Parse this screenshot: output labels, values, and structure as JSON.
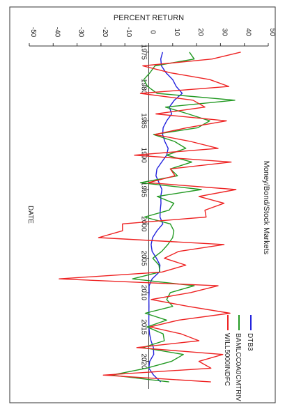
{
  "chart_data": {
    "type": "line",
    "orientation": "rotated-90-clockwise",
    "title": "Money/Bond/Stock Markets",
    "xlabel": "DATE",
    "ylabel": "PERCENT RETURN",
    "ylim": [
      -50,
      50
    ],
    "xlim": [
      1973.5,
      2024
    ],
    "y_ticks": [
      -50,
      -40,
      -30,
      -20,
      -10,
      0,
      10,
      20,
      30,
      40,
      50
    ],
    "y_tick_labels": [
      "-50",
      "-40",
      "-30",
      "-20",
      "-10",
      "0",
      "10",
      "20",
      "30",
      "40",
      "50"
    ],
    "x_ticks": [
      1975,
      1980,
      1985,
      1990,
      1995,
      2000,
      2005,
      2010,
      2015,
      2020
    ],
    "x_tick_labels": [
      "1975",
      "1980",
      "1985",
      "1990",
      "1995",
      "2000",
      "2005",
      "2010",
      "2015",
      "2020"
    ],
    "legend_position": "bottom-right",
    "series": [
      {
        "name": "DTB3",
        "color": "#2222dd",
        "x": [
          1975,
          1976,
          1977,
          1978,
          1979,
          1980,
          1981,
          1982,
          1983,
          1984,
          1985,
          1986,
          1987,
          1988,
          1989,
          1990,
          1991,
          1992,
          1993,
          1994,
          1995,
          1996,
          1997,
          1998,
          1999,
          2000,
          2001,
          2002,
          2003,
          2004,
          2005,
          2006,
          2007,
          2008,
          2009,
          2010,
          2011,
          2012,
          2013,
          2014,
          2015,
          2016,
          2017,
          2018,
          2019,
          2020,
          2021,
          2022,
          2023
        ],
        "y": [
          5.8,
          5.0,
          5.3,
          7.2,
          10.0,
          11.5,
          14.0,
          10.7,
          8.6,
          9.6,
          7.5,
          6.0,
          5.8,
          6.7,
          8.1,
          7.5,
          5.4,
          3.4,
          3.0,
          4.3,
          5.5,
          5.0,
          5.1,
          4.8,
          4.7,
          5.9,
          3.4,
          1.6,
          1.0,
          1.4,
          3.2,
          4.7,
          4.4,
          1.4,
          0.15,
          0.14,
          0.05,
          0.09,
          0.06,
          0.03,
          0.05,
          0.32,
          0.93,
          1.94,
          2.06,
          0.37,
          0.04,
          2.0,
          5.0
        ]
      },
      {
        "name": "BAMLCC0A0CMTRIV",
        "color": "#229922",
        "x": [
          1975,
          1976,
          1977,
          1978,
          1979,
          1980,
          1981,
          1982,
          1983,
          1984,
          1985,
          1986,
          1987,
          1988,
          1989,
          1990,
          1991,
          1992,
          1993,
          1994,
          1995,
          1996,
          1997,
          1998,
          1999,
          2000,
          2001,
          2002,
          2003,
          2004,
          2005,
          2006,
          2007,
          2008,
          2009,
          2010,
          2011,
          2012,
          2013,
          2014,
          2015,
          2016,
          2017,
          2018,
          2019,
          2020,
          2021,
          2022,
          2023
        ],
        "y": [
          17.0,
          19.0,
          2.6,
          0.5,
          -2.1,
          -0.5,
          3.5,
          36.0,
          7.0,
          16.5,
          25.5,
          20.5,
          2.0,
          10.8,
          15.5,
          7.5,
          18.0,
          9.0,
          12.0,
          -3.5,
          22.0,
          3.5,
          10.5,
          8.5,
          -1.8,
          9.0,
          10.5,
          10.0,
          8.0,
          5.4,
          1.7,
          4.3,
          4.6,
          -6.8,
          19.0,
          9.0,
          7.5,
          10.0,
          -1.5,
          7.5,
          -0.7,
          6.0,
          6.5,
          -2.5,
          14.5,
          9.5,
          -1.0,
          -15.5,
          8.5
        ]
      },
      {
        "name": "WILL5000INDFC",
        "color": "#ee2222",
        "x": [
          1975,
          1976,
          1977,
          1978,
          1979,
          1980,
          1981,
          1982,
          1983,
          1984,
          1985,
          1986,
          1987,
          1988,
          1989,
          1990,
          1991,
          1992,
          1993,
          1994,
          1995,
          1996,
          1997,
          1998,
          1999,
          2000,
          2001,
          2002,
          2003,
          2004,
          2005,
          2006,
          2007,
          2008,
          2009,
          2010,
          2011,
          2012,
          2013,
          2014,
          2015,
          2016,
          2017,
          2018,
          2019,
          2020,
          2021,
          2022,
          2023
        ],
        "y": [
          38.5,
          26.5,
          -2.5,
          9.0,
          25.5,
          33.5,
          -3.5,
          18.5,
          23.5,
          3.0,
          32.5,
          16.0,
          2.5,
          17.5,
          29.0,
          -6.0,
          34.5,
          9.0,
          11.0,
          -0.2,
          36.5,
          21.0,
          31.5,
          23.5,
          24.0,
          -11.0,
          -11.0,
          -21.0,
          31.5,
          12.5,
          6.5,
          15.5,
          5.5,
          -37.5,
          29.0,
          17.5,
          1.0,
          16.5,
          34.0,
          12.5,
          0.5,
          13.5,
          21.0,
          -5.0,
          31.0,
          21.0,
          26.0,
          -19.0,
          26.0
        ]
      }
    ]
  }
}
